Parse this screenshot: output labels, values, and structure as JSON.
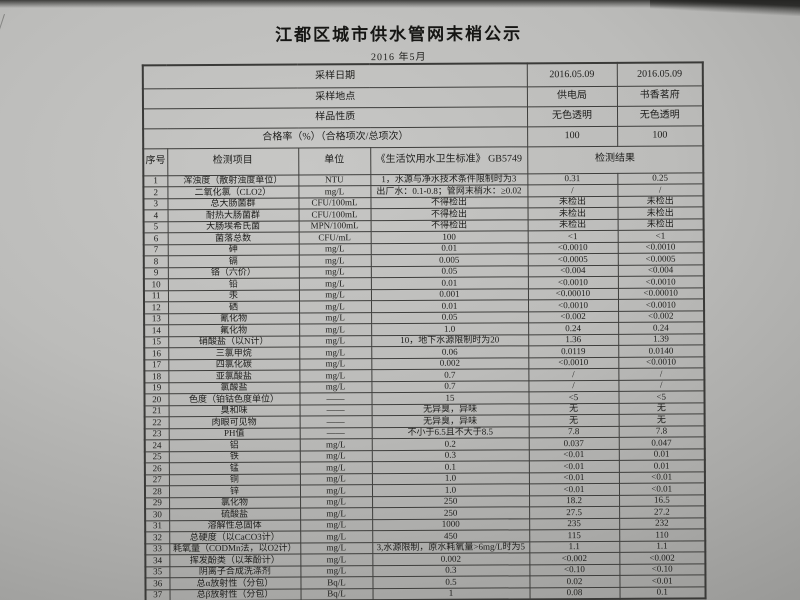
{
  "document": {
    "title": "江都区城市供水管网末梢公示",
    "subtitle": "2016 年5月"
  },
  "colors": {
    "paper": "#b5b5b3",
    "ink": "#1d1d1b"
  },
  "info_rows": [
    {
      "label": "采样日期",
      "value1": "2016.05.09",
      "value2": "2016.05.09"
    },
    {
      "label": "采样地点",
      "value1": "供电局",
      "value2": "书香茗府"
    },
    {
      "label": "样品性质",
      "value1": "无色透明",
      "value2": "无色透明"
    },
    {
      "label": "合格率（%）（合格项次/总项次）",
      "value1": "100",
      "value2": "100"
    }
  ],
  "columns": {
    "no": "序号",
    "item": "检测项目",
    "unit": "单位",
    "standard": "《生活饮用水卫生标准》 GB5749",
    "result": "检测结果"
  },
  "rows": [
    {
      "no": "1",
      "item": "浑浊度（散射浊度单位）",
      "unit": "NTU",
      "standard": "1，水源与净水技术条件限制时为3",
      "result1": "0.31",
      "result2": "0.25"
    },
    {
      "no": "2",
      "item": "二氧化氯（CLO2）",
      "unit": "mg/L",
      "standard": "出厂水：0.1-0.8；管网末梢水：≥0.02",
      "result1": "/",
      "result2": "/"
    },
    {
      "no": "3",
      "item": "总大肠菌群",
      "unit": "CFU/100mL",
      "standard": "不得检出",
      "result1": "未检出",
      "result2": "未检出"
    },
    {
      "no": "4",
      "item": "耐热大肠菌群",
      "unit": "CFU/100mL",
      "standard": "不得检出",
      "result1": "未检出",
      "result2": "未检出"
    },
    {
      "no": "5",
      "item": "大肠埃希氏菌",
      "unit": "MPN/100mL",
      "standard": "不得检出",
      "result1": "未检出",
      "result2": "未检出"
    },
    {
      "no": "6",
      "item": "菌落总数",
      "unit": "CFU/mL",
      "standard": "100",
      "result1": "<1",
      "result2": "<1"
    },
    {
      "no": "7",
      "item": "砷",
      "unit": "mg/L",
      "standard": "0.01",
      "result1": "<0.0010",
      "result2": "<0.0010"
    },
    {
      "no": "8",
      "item": "镉",
      "unit": "mg/L",
      "standard": "0.005",
      "result1": "<0.0005",
      "result2": "<0.0005"
    },
    {
      "no": "9",
      "item": "铬（六价）",
      "unit": "mg/L",
      "standard": "0.05",
      "result1": "<0.004",
      "result2": "<0.004"
    },
    {
      "no": "10",
      "item": "铅",
      "unit": "mg/L",
      "standard": "0.01",
      "result1": "<0.0010",
      "result2": "<0.0010"
    },
    {
      "no": "11",
      "item": "汞",
      "unit": "mg/L",
      "standard": "0.001",
      "result1": "<0.00010",
      "result2": "<0.00010"
    },
    {
      "no": "12",
      "item": "硒",
      "unit": "mg/L",
      "standard": "0.01",
      "result1": "<0.0010",
      "result2": "<0.0010"
    },
    {
      "no": "13",
      "item": "氰化物",
      "unit": "mg/L",
      "standard": "0.05",
      "result1": "<0.002",
      "result2": "<0.002"
    },
    {
      "no": "14",
      "item": "氟化物",
      "unit": "mg/L",
      "standard": "1.0",
      "result1": "0.24",
      "result2": "0.24"
    },
    {
      "no": "15",
      "item": "硝酸盐（以N计）",
      "unit": "mg/L",
      "standard": "10，地下水源限制时为20",
      "result1": "1.36",
      "result2": "1.39"
    },
    {
      "no": "16",
      "item": "三氯甲烷",
      "unit": "mg/L",
      "standard": "0.06",
      "result1": "0.0119",
      "result2": "0.0140"
    },
    {
      "no": "17",
      "item": "四氯化碳",
      "unit": "mg/L",
      "standard": "0.002",
      "result1": "<0.0010",
      "result2": "<0.0010"
    },
    {
      "no": "18",
      "item": "亚氯酸盐",
      "unit": "mg/L",
      "standard": "0.7",
      "result1": "/",
      "result2": "/"
    },
    {
      "no": "19",
      "item": "氯酸盐",
      "unit": "mg/L",
      "standard": "0.7",
      "result1": "/",
      "result2": "/"
    },
    {
      "no": "20",
      "item": "色度（铂钴色度单位）",
      "unit": "——",
      "standard": "15",
      "result1": "<5",
      "result2": "<5"
    },
    {
      "no": "21",
      "item": "臭和味",
      "unit": "——",
      "standard": "无异臭，异味",
      "result1": "无",
      "result2": "无"
    },
    {
      "no": "22",
      "item": "肉眼可见物",
      "unit": "——",
      "standard": "无异臭，异味",
      "result1": "无",
      "result2": "无"
    },
    {
      "no": "23",
      "item": "PH值",
      "unit": "——",
      "standard": "不小于6.5且不大于8.5",
      "result1": "7.8",
      "result2": "7.8"
    },
    {
      "no": "24",
      "item": "铝",
      "unit": "mg/L",
      "standard": "0.2",
      "result1": "0.037",
      "result2": "0.047"
    },
    {
      "no": "25",
      "item": "铁",
      "unit": "mg/L",
      "standard": "0.3",
      "result1": "<0.01",
      "result2": "0.01"
    },
    {
      "no": "26",
      "item": "锰",
      "unit": "mg/L",
      "standard": "0.1",
      "result1": "<0.01",
      "result2": "0.01"
    },
    {
      "no": "27",
      "item": "铜",
      "unit": "mg/L",
      "standard": "1.0",
      "result1": "<0.01",
      "result2": "<0.01"
    },
    {
      "no": "28",
      "item": "锌",
      "unit": "mg/L",
      "standard": "1.0",
      "result1": "<0.01",
      "result2": "<0.01"
    },
    {
      "no": "29",
      "item": "氯化物",
      "unit": "mg/L",
      "standard": "250",
      "result1": "18.2",
      "result2": "16.5"
    },
    {
      "no": "30",
      "item": "硫酸盐",
      "unit": "mg/L",
      "standard": "250",
      "result1": "27.5",
      "result2": "27.2"
    },
    {
      "no": "31",
      "item": "溶解性总固体",
      "unit": "mg/L",
      "standard": "1000",
      "result1": "235",
      "result2": "232"
    },
    {
      "no": "32",
      "item": "总硬度（以CaCO3计）",
      "unit": "mg/L",
      "standard": "450",
      "result1": "115",
      "result2": "110"
    },
    {
      "no": "33",
      "item": "耗氧量（CODMn法，以O2计）",
      "unit": "mg/L",
      "standard": "3,水源限制，原水耗氧量>6mg/L时为5",
      "result1": "1.1",
      "result2": "1.1"
    },
    {
      "no": "34",
      "item": "挥发酚类（以苯酚计）",
      "unit": "mg/L",
      "standard": "0.002",
      "result1": "<0.002",
      "result2": "<0.002"
    },
    {
      "no": "35",
      "item": "阴离子合成洗涤剂",
      "unit": "mg/L",
      "standard": "0.3",
      "result1": "<0.10",
      "result2": "<0.10"
    },
    {
      "no": "36",
      "item": "总α放射性（分包）",
      "unit": "Bq/L",
      "standard": "0.5",
      "result1": "0.02",
      "result2": "<0.01"
    },
    {
      "no": "37",
      "item": "总β放射性（分包）",
      "unit": "Bq/L",
      "standard": "1",
      "result1": "0.08",
      "result2": "0.1"
    }
  ]
}
